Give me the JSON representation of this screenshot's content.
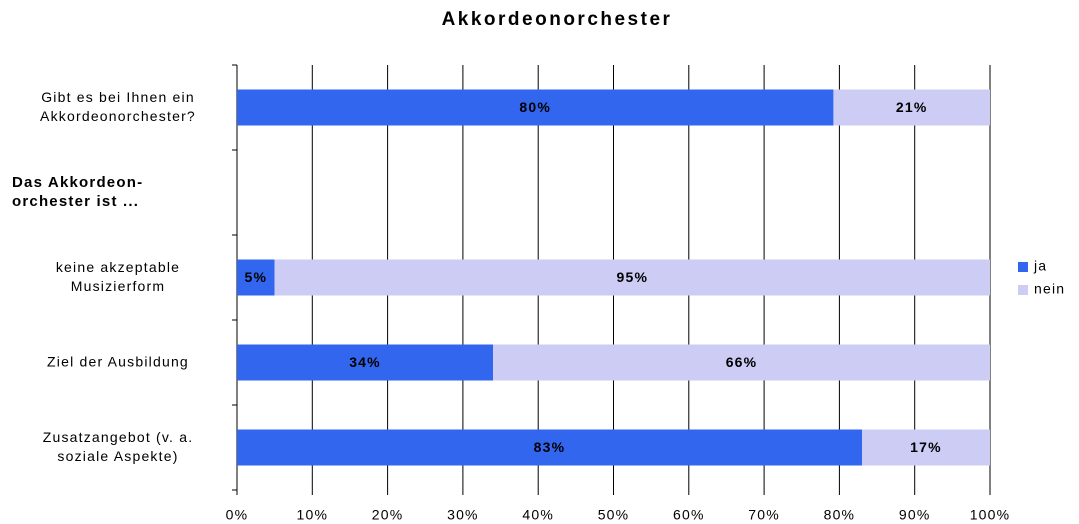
{
  "chart_data": {
    "type": "bar",
    "orientation": "horizontal",
    "stacking": "percent",
    "title": "Akkordeonorchester",
    "categories": [
      "Gibt es bei Ihnen ein\nAkkordeonorchester?",
      "Das Akkordeon-\norchester ist ...",
      "keine akzeptable\nMusizierform",
      "Ziel der Ausbildung",
      "Zusatzangebot (v. a.\nsoziale Aspekte)"
    ],
    "series": [
      {
        "name": "ja",
        "color": "#3366ee",
        "label_color": "#000000",
        "values": [
          80,
          null,
          5,
          34,
          83
        ],
        "value_labels": [
          "80%",
          null,
          "5%",
          "34%",
          "83%"
        ]
      },
      {
        "name": "nein",
        "color": "#ccccf5",
        "label_color": "#999999",
        "values": [
          21,
          null,
          95,
          66,
          17
        ],
        "value_labels": [
          "21%",
          null,
          "95%",
          "66%",
          "17%"
        ]
      }
    ],
    "xlim": [
      0,
      100
    ],
    "xticks": [
      {
        "value": 0,
        "label": "0%"
      },
      {
        "value": 10,
        "label": "10%"
      },
      {
        "value": 20,
        "label": "20%"
      },
      {
        "value": 30,
        "label": "30%"
      },
      {
        "value": 40,
        "label": "40%"
      },
      {
        "value": 50,
        "label": "50%"
      },
      {
        "value": 60,
        "label": "60%"
      },
      {
        "value": 70,
        "label": "70%"
      },
      {
        "value": 80,
        "label": "80%"
      },
      {
        "value": 90,
        "label": "90%"
      },
      {
        "value": 100,
        "label": "100%"
      }
    ],
    "grid": true,
    "legend": "right"
  }
}
